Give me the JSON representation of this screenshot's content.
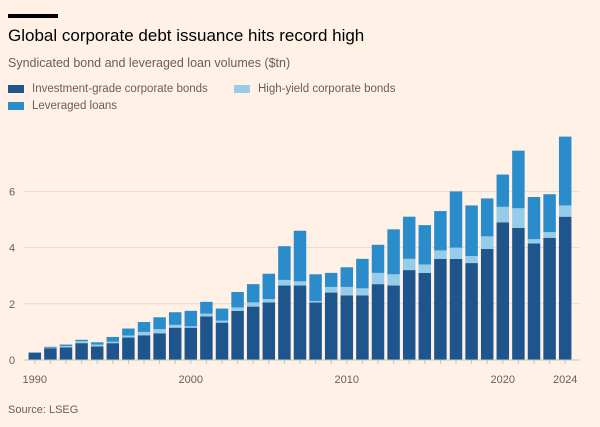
{
  "chart_data": {
    "type": "bar",
    "stacked": true,
    "title": "Global corporate debt issuance hits record high",
    "subtitle": "Syndicated bond and leveraged loan volumes ($tn)",
    "source": "Source: LSEG",
    "xlabel": "",
    "ylabel": "",
    "ylim": [
      0,
      8
    ],
    "yticks": [
      0,
      2,
      4,
      6
    ],
    "xtick_labels": [
      "1990",
      "2000",
      "2010",
      "2020",
      "2024"
    ],
    "grid": true,
    "legend_position": "top-left",
    "categories": [
      1990,
      1991,
      1992,
      1993,
      1994,
      1995,
      1996,
      1997,
      1998,
      1999,
      2000,
      2001,
      2002,
      2003,
      2004,
      2005,
      2006,
      2007,
      2008,
      2009,
      2010,
      2011,
      2012,
      2013,
      2014,
      2015,
      2016,
      2017,
      2018,
      2019,
      2020,
      2021,
      2022,
      2023,
      2024
    ],
    "series": [
      {
        "name": "Investment-grade corporate bonds",
        "color": "#1e558c",
        "values": [
          0.25,
          0.42,
          0.45,
          0.6,
          0.48,
          0.6,
          0.8,
          0.88,
          0.95,
          1.15,
          1.15,
          1.55,
          1.33,
          1.75,
          1.9,
          2.05,
          2.65,
          2.65,
          2.05,
          2.4,
          2.3,
          2.3,
          2.7,
          2.65,
          3.2,
          3.1,
          3.6,
          3.6,
          3.45,
          3.95,
          4.9,
          4.7,
          4.15,
          4.35,
          5.1
        ]
      },
      {
        "name": "High-yield corporate bonds",
        "color": "#96cce9",
        "values": [
          0.0,
          0.02,
          0.05,
          0.07,
          0.07,
          0.05,
          0.07,
          0.12,
          0.15,
          0.1,
          0.05,
          0.1,
          0.07,
          0.12,
          0.15,
          0.12,
          0.2,
          0.15,
          0.05,
          0.2,
          0.3,
          0.25,
          0.4,
          0.4,
          0.4,
          0.3,
          0.3,
          0.4,
          0.25,
          0.45,
          0.55,
          0.7,
          0.15,
          0.2,
          0.4
        ]
      },
      {
        "name": "Leveraged loans",
        "color": "#2a8ccb",
        "values": [
          0.02,
          0.03,
          0.05,
          0.05,
          0.08,
          0.17,
          0.25,
          0.35,
          0.42,
          0.45,
          0.55,
          0.42,
          0.43,
          0.55,
          0.65,
          0.9,
          1.2,
          1.8,
          0.95,
          0.5,
          0.7,
          1.05,
          1.0,
          1.6,
          1.5,
          1.4,
          1.4,
          2.0,
          1.8,
          1.35,
          1.15,
          2.05,
          1.5,
          1.35,
          2.45
        ]
      }
    ],
    "legend": [
      {
        "label": "Investment-grade corporate bonds",
        "color": "#1e558c"
      },
      {
        "label": "High-yield corporate bonds",
        "color": "#96cce9"
      },
      {
        "label": "Leveraged loans",
        "color": "#2a8ccb"
      }
    ]
  }
}
